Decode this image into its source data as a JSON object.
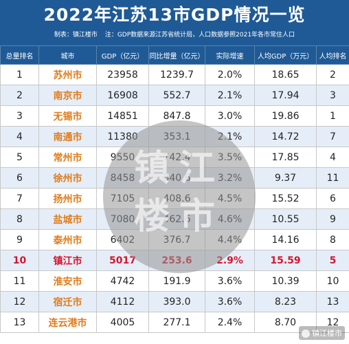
{
  "header": {
    "title": "2022年江苏13市GDP情况一览",
    "maker": "制表：镇江楼市",
    "note": "注：GDP数据来源江苏省统计局，人口数据参照2021年各市常住人口"
  },
  "columns": [
    "总量排名",
    "城市",
    "GDP（亿元）",
    "同比增量（亿元）",
    "实际增速",
    "人均GDP（万元）",
    "人均排名"
  ],
  "rows": [
    {
      "rank": "1",
      "city": "苏州市",
      "gdp": "23958",
      "increase": "1239.7",
      "growth": "2.0%",
      "per_capita": "18.65",
      "per_rank": "2"
    },
    {
      "rank": "2",
      "city": "南京市",
      "gdp": "16908",
      "increase": "552.7",
      "growth": "2.1%",
      "per_capita": "17.94",
      "per_rank": "3"
    },
    {
      "rank": "3",
      "city": "无锡市",
      "gdp": "14851",
      "increase": "847.8",
      "growth": "3.0%",
      "per_capita": "19.86",
      "per_rank": "1"
    },
    {
      "rank": "4",
      "city": "南通市",
      "gdp": "11380",
      "increase": "353.1",
      "growth": "2.1%",
      "per_capita": "14.72",
      "per_rank": "7"
    },
    {
      "rank": "5",
      "city": "常州市",
      "gdp": "9550",
      "increase": "742.4",
      "growth": "3.5%",
      "per_capita": "17.85",
      "per_rank": "4"
    },
    {
      "rank": "6",
      "city": "徐州市",
      "gdp": "8458",
      "increase": "340.6",
      "growth": "3.2%",
      "per_capita": "9.37",
      "per_rank": "11"
    },
    {
      "rank": "7",
      "city": "扬州市",
      "gdp": "7105",
      "increase": "408.6",
      "growth": "4.5%",
      "per_capita": "15.52",
      "per_rank": "6"
    },
    {
      "rank": "8",
      "city": "盐城市",
      "gdp": "7080",
      "increase": "462.6",
      "growth": "4.6%",
      "per_capita": "10.55",
      "per_rank": "9"
    },
    {
      "rank": "9",
      "city": "泰州市",
      "gdp": "6402",
      "increase": "376.7",
      "growth": "4.4%",
      "per_capita": "14.16",
      "per_rank": "8"
    },
    {
      "rank": "10",
      "city": "镇江市",
      "gdp": "5017",
      "increase": "253.6",
      "growth": "2.9%",
      "per_capita": "15.59",
      "per_rank": "5",
      "highlight": true
    },
    {
      "rank": "11",
      "city": "淮安市",
      "gdp": "4742",
      "increase": "191.9",
      "growth": "3.6%",
      "per_capita": "10.39",
      "per_rank": "10"
    },
    {
      "rank": "12",
      "city": "宿迁市",
      "gdp": "4112",
      "increase": "393.0",
      "growth": "3.6%",
      "per_capita": "8.23",
      "per_rank": "13"
    },
    {
      "rank": "13",
      "city": "连云港市",
      "gdp": "4005",
      "increase": "277.1",
      "growth": "2.4%",
      "per_capita": "8.70",
      "per_rank": "12"
    }
  ],
  "watermark": {
    "line1": "镇江",
    "line2": "楼市"
  },
  "corner_mark": "镇江楼市",
  "colors": {
    "header_bg": "#1f5a96",
    "city_text": "#e07b1a",
    "highlight_text": "#d8132c",
    "even_row_bg": "#e2ecf7"
  }
}
